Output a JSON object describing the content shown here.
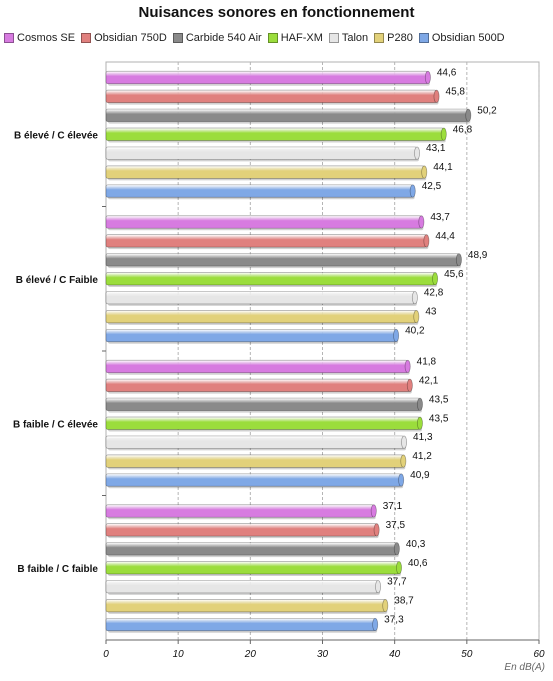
{
  "chart_data": {
    "type": "bar",
    "orientation": "horizontal",
    "title": "Nuisances sonores en fonctionnement",
    "unit_label": "En dB(A)",
    "xlim": [
      0,
      60
    ],
    "xticks": [
      0,
      10,
      20,
      30,
      40,
      50,
      60
    ],
    "grid": true,
    "legend_position": "top",
    "categories": [
      "B élevé / C élevée",
      "B élevé / C Faible",
      "B faible / C élevée",
      "B faible / C faible"
    ],
    "series": [
      {
        "name": "Cosmos SE",
        "color": "#d77be0",
        "values": [
          44.6,
          43.7,
          41.8,
          37.1
        ],
        "labels": [
          "44,6",
          "43,7",
          "41,8",
          "37,1"
        ]
      },
      {
        "name": "Obsidian 750D",
        "color": "#e0807e",
        "values": [
          45.8,
          44.4,
          42.1,
          37.5
        ],
        "labels": [
          "45,8",
          "44,4",
          "42,1",
          "37,5"
        ]
      },
      {
        "name": "Carbide 540 Air",
        "color": "#8a8a8a",
        "values": [
          50.2,
          48.9,
          43.5,
          40.3
        ],
        "labels": [
          "50,2",
          "48,9",
          "43,5",
          "40,3"
        ]
      },
      {
        "name": "HAF-XM",
        "color": "#9bdd3c",
        "values": [
          46.8,
          45.6,
          43.5,
          40.6
        ],
        "labels": [
          "46,8",
          "45,6",
          "43,5",
          "40,6"
        ]
      },
      {
        "name": "Talon",
        "color": "#e6e6e6",
        "values": [
          43.1,
          42.8,
          41.3,
          37.7
        ],
        "labels": [
          "43,1",
          "42,8",
          "41,3",
          "37,7"
        ]
      },
      {
        "name": "P280",
        "color": "#e2d17a",
        "values": [
          44.1,
          43,
          41.2,
          38.7
        ],
        "labels": [
          "44,1",
          "43",
          "41,2",
          "38,7"
        ]
      },
      {
        "name": "Obsidian 500D",
        "color": "#7fa8e6",
        "values": [
          42.5,
          40.2,
          40.9,
          37.3
        ],
        "labels": [
          "42,5",
          "40,2",
          "40,9",
          "37,3"
        ]
      }
    ]
  }
}
